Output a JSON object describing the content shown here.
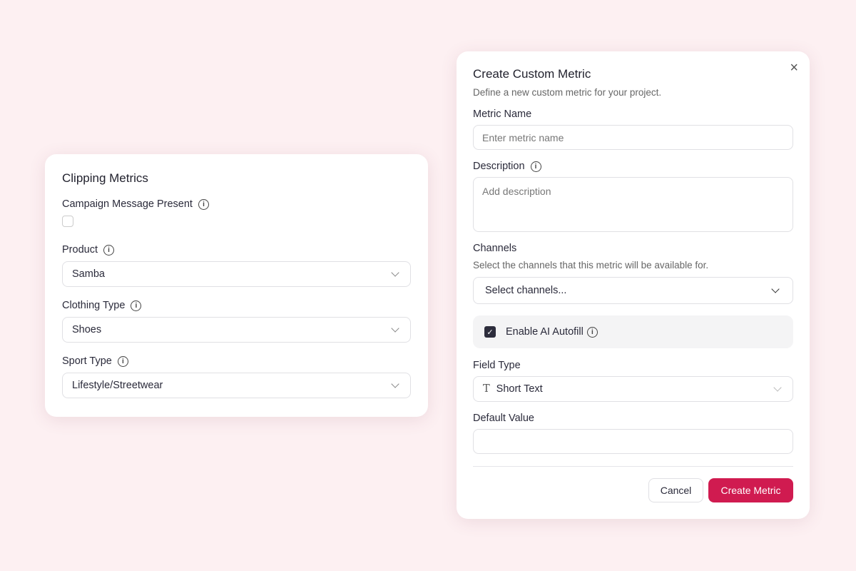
{
  "left": {
    "title": "Clipping Metrics",
    "campaign_label": "Campaign Message Present",
    "campaign_checked": false,
    "fields": [
      {
        "label": "Product",
        "value": "Samba"
      },
      {
        "label": "Clothing Type",
        "value": "Shoes"
      },
      {
        "label": "Sport Type",
        "value": "Lifestyle/Streetwear"
      }
    ]
  },
  "modal": {
    "title": "Create Custom Metric",
    "subtitle": "Define a new custom metric for your project.",
    "metric_name_label": "Metric Name",
    "metric_name_placeholder": "Enter metric name",
    "description_label": "Description",
    "description_placeholder": "Add description",
    "channels_label": "Channels",
    "channels_help": "Select the channels that this metric will be available for.",
    "channels_placeholder": "Select channels...",
    "ai_autofill_label": "Enable AI Autofill",
    "ai_autofill_checked": true,
    "field_type_label": "Field Type",
    "field_type_value": "Short Text",
    "default_value_label": "Default Value",
    "default_value": "",
    "cancel": "Cancel",
    "create": "Create Metric",
    "accent": "#d01b50"
  }
}
